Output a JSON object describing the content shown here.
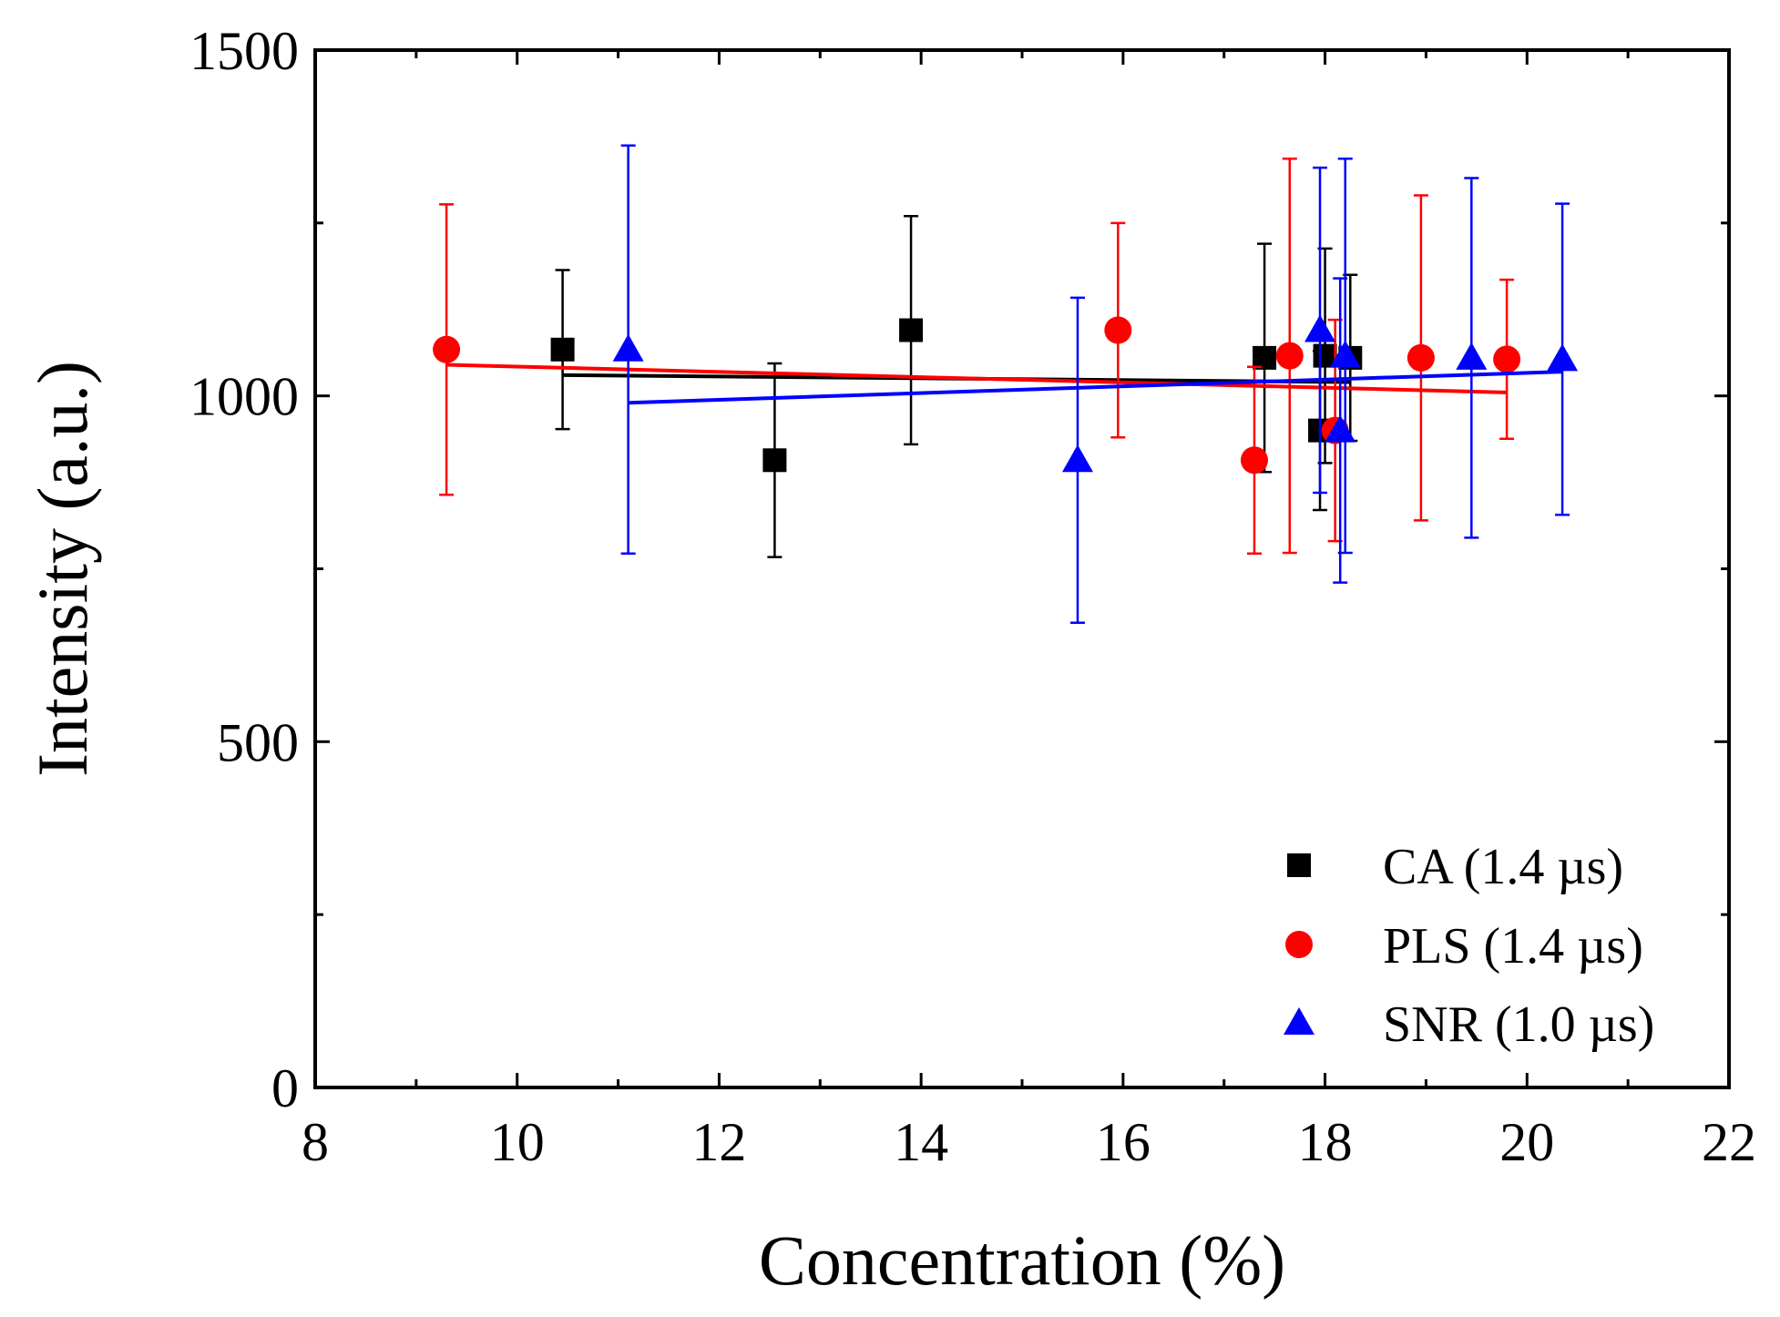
{
  "chart_data": {
    "type": "scatter",
    "xlabel": "Concentration (%)",
    "ylabel": "Intensity (a.u.)",
    "xlim": [
      8,
      22
    ],
    "ylim": [
      0,
      1500
    ],
    "x_ticks": [
      "8",
      "10",
      "12",
      "14",
      "16",
      "18",
      "20",
      "22"
    ],
    "y_ticks": [
      "0",
      "500",
      "1000",
      "1500"
    ],
    "grid": false,
    "legend_position": "bottom-right",
    "series": [
      {
        "name": "CA (1.4 µs)",
        "color": "#000000",
        "marker": "square",
        "points": [
          {
            "x": 10.45,
            "y": 1067,
            "err": 115
          },
          {
            "x": 12.55,
            "y": 907,
            "err": 140
          },
          {
            "x": 13.9,
            "y": 1095,
            "err": 165
          },
          {
            "x": 17.4,
            "y": 1055,
            "err": 165
          },
          {
            "x": 17.95,
            "y": 950,
            "err": 115
          },
          {
            "x": 18.0,
            "y": 1058,
            "err": 155
          },
          {
            "x": 18.25,
            "y": 1055,
            "err": 120
          }
        ],
        "fit": {
          "x": [
            10.45,
            18.25
          ],
          "y": [
            1030,
            1020
          ]
        }
      },
      {
        "name": "PLS (1.4 µs)",
        "color": "#ff0000",
        "marker": "circle",
        "points": [
          {
            "x": 9.3,
            "y": 1067,
            "err": 210
          },
          {
            "x": 15.95,
            "y": 1095,
            "err": 155
          },
          {
            "x": 17.3,
            "y": 907,
            "err": 135
          },
          {
            "x": 17.65,
            "y": 1058,
            "err": 285
          },
          {
            "x": 18.1,
            "y": 950,
            "err": 160
          },
          {
            "x": 18.95,
            "y": 1055,
            "err": 235
          },
          {
            "x": 19.8,
            "y": 1053,
            "err": 115
          }
        ],
        "fit": {
          "x": [
            9.3,
            19.8
          ],
          "y": [
            1045,
            1005
          ]
        }
      },
      {
        "name": "SNR (1.0 µs)",
        "color": "#0000ff",
        "marker": "triangle",
        "points": [
          {
            "x": 11.1,
            "y": 1067,
            "err": 295
          },
          {
            "x": 15.55,
            "y": 907,
            "err": 235
          },
          {
            "x": 17.95,
            "y": 1095,
            "err": 235
          },
          {
            "x": 18.15,
            "y": 950,
            "err": 220
          },
          {
            "x": 18.2,
            "y": 1058,
            "err": 285
          },
          {
            "x": 19.45,
            "y": 1055,
            "err": 260
          },
          {
            "x": 20.35,
            "y": 1053,
            "err": 225
          }
        ],
        "fit": {
          "x": [
            11.1,
            20.35
          ],
          "y": [
            990,
            1035
          ]
        }
      }
    ]
  }
}
